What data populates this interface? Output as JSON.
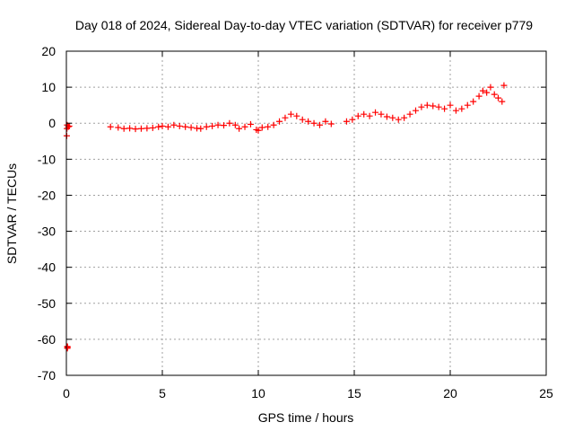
{
  "chart_data": {
    "type": "scatter",
    "title": "Day 018 of 2024, Sidereal Day-to-day VTEC variation (SDTVAR) for receiver p779",
    "xlabel": "GPS time / hours",
    "ylabel": "SDTVAR / TECUs",
    "xlim": [
      0,
      25
    ],
    "ylim": [
      -70,
      20
    ],
    "xticks": [
      0,
      5,
      10,
      15,
      20,
      25
    ],
    "yticks": [
      -70,
      -60,
      -50,
      -40,
      -30,
      -20,
      -10,
      0,
      10,
      20
    ],
    "grid": true,
    "marker": "+",
    "series": [
      {
        "name": "SDTVAR",
        "color": "#ff0000",
        "x": [
          0.02,
          0.03,
          0.04,
          0.05,
          0.05,
          0.06,
          0.1,
          0.15,
          2.3,
          2.7,
          3.0,
          3.3,
          3.6,
          3.9,
          4.2,
          4.5,
          4.8,
          5.0,
          5.3,
          5.6,
          5.9,
          6.2,
          6.5,
          6.8,
          7.0,
          7.3,
          7.6,
          7.9,
          8.2,
          8.5,
          8.8,
          9.0,
          9.3,
          9.6,
          9.9,
          10.0,
          10.2,
          10.5,
          10.8,
          11.1,
          11.4,
          11.7,
          12.0,
          12.3,
          12.6,
          12.9,
          13.2,
          13.5,
          13.8,
          14.6,
          14.9,
          15.2,
          15.5,
          15.8,
          16.1,
          16.4,
          16.7,
          17.0,
          17.3,
          17.6,
          17.9,
          18.2,
          18.5,
          18.8,
          19.1,
          19.4,
          19.7,
          20.0,
          20.3,
          20.6,
          20.9,
          21.2,
          21.5,
          21.7,
          21.9,
          22.1,
          22.3,
          22.5,
          22.7,
          22.8
        ],
        "y": [
          -3.5,
          -1.5,
          -0.5,
          -62,
          -62.5,
          -62.2,
          -1.0,
          -0.8,
          -1.0,
          -1.2,
          -1.5,
          -1.4,
          -1.6,
          -1.5,
          -1.4,
          -1.3,
          -1.0,
          -0.8,
          -1.0,
          -0.5,
          -0.8,
          -1.0,
          -1.2,
          -1.4,
          -1.5,
          -1.0,
          -0.8,
          -0.5,
          -0.6,
          0.0,
          -0.5,
          -1.5,
          -1.0,
          -0.3,
          -1.8,
          -2.0,
          -1.2,
          -1.0,
          -0.5,
          0.5,
          1.5,
          2.5,
          2.0,
          1.0,
          0.5,
          0.0,
          -0.5,
          0.5,
          -0.2,
          0.5,
          1.0,
          2.0,
          2.5,
          2.0,
          3.0,
          2.5,
          1.8,
          1.5,
          1.0,
          1.5,
          2.5,
          3.5,
          4.5,
          5.0,
          4.8,
          4.5,
          4.0,
          5.0,
          3.5,
          4.0,
          5.0,
          6.0,
          7.5,
          9.0,
          8.5,
          10.0,
          8.0,
          7.0,
          6.0,
          10.5
        ]
      }
    ]
  }
}
